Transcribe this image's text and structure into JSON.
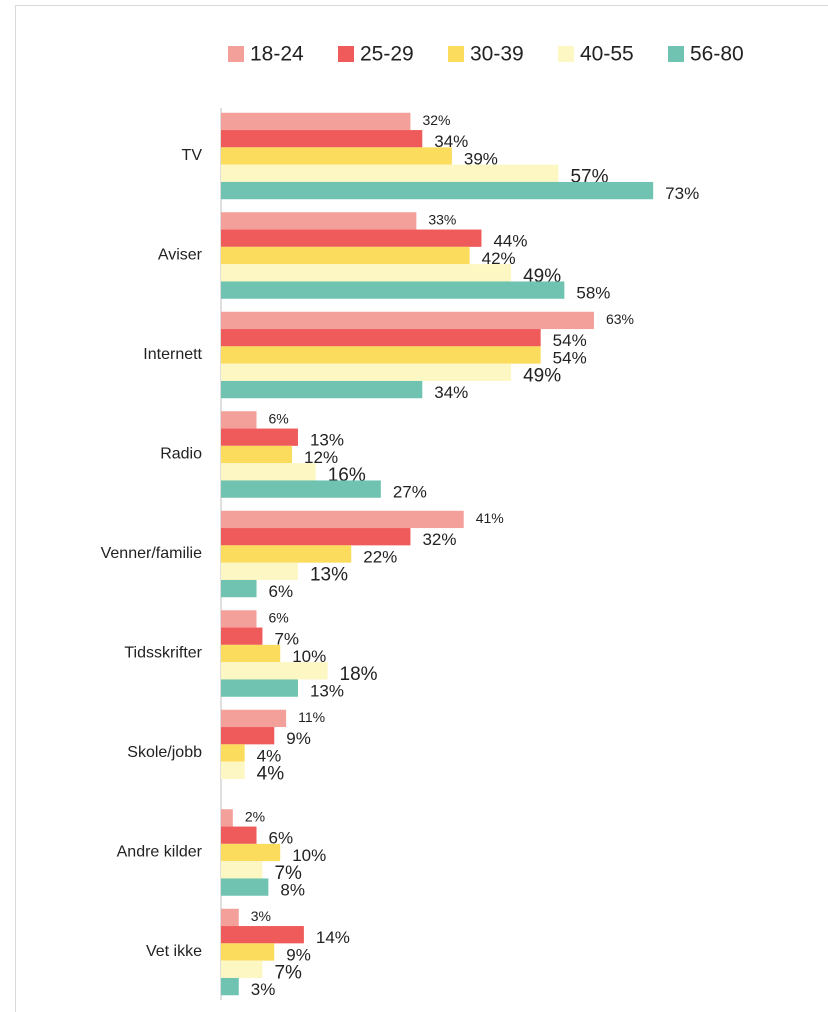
{
  "chart_data": {
    "type": "hbar",
    "categories": [
      "TV",
      "Aviser",
      "Internett",
      "Radio",
      "Venner/familie",
      "Tidsskrifter",
      "Skole/jobb",
      "Andre kilder",
      "Vet ikke"
    ],
    "series": [
      {
        "name": "18-24",
        "color": "#f4a09a",
        "values": [
          32,
          33,
          63,
          6,
          41,
          6,
          11,
          2,
          3
        ],
        "value_labels": [
          "32%",
          "33%",
          "63%",
          "6%",
          "41%",
          "6%",
          "11%",
          "2%",
          "3%"
        ]
      },
      {
        "name": "25-29",
        "color": "#ef5b5b",
        "values": [
          34,
          44,
          54,
          13,
          32,
          7,
          9,
          6,
          14
        ],
        "value_labels": [
          "34%",
          "44%",
          "54%",
          "13%",
          "32%",
          "7%",
          "9%",
          "6%",
          "14%"
        ]
      },
      {
        "name": "30-39",
        "color": "#fcdc5c",
        "values": [
          39,
          42,
          54,
          12,
          22,
          10,
          4,
          10,
          9
        ],
        "value_labels": [
          "39%",
          "42%",
          "54%",
          "12%",
          "22%",
          "10%",
          "4%",
          "10%",
          "9%"
        ]
      },
      {
        "name": "40-55",
        "color": "#fdf7c3",
        "values": [
          57,
          49,
          49,
          16,
          13,
          18,
          4,
          7,
          7
        ],
        "value_labels": [
          "57%",
          "49%",
          "49%",
          "16%",
          "13%",
          "18%",
          "4%",
          "7%",
          "7%"
        ]
      },
      {
        "name": "56-80",
        "color": "#6fc3b0",
        "values": [
          73,
          58,
          34,
          27,
          6,
          13,
          null,
          8,
          3
        ],
        "value_labels": [
          "73%",
          "58%",
          "34%",
          "27%",
          "6%",
          "13%",
          null,
          "8%",
          "3%"
        ]
      }
    ],
    "legend": "top"
  }
}
